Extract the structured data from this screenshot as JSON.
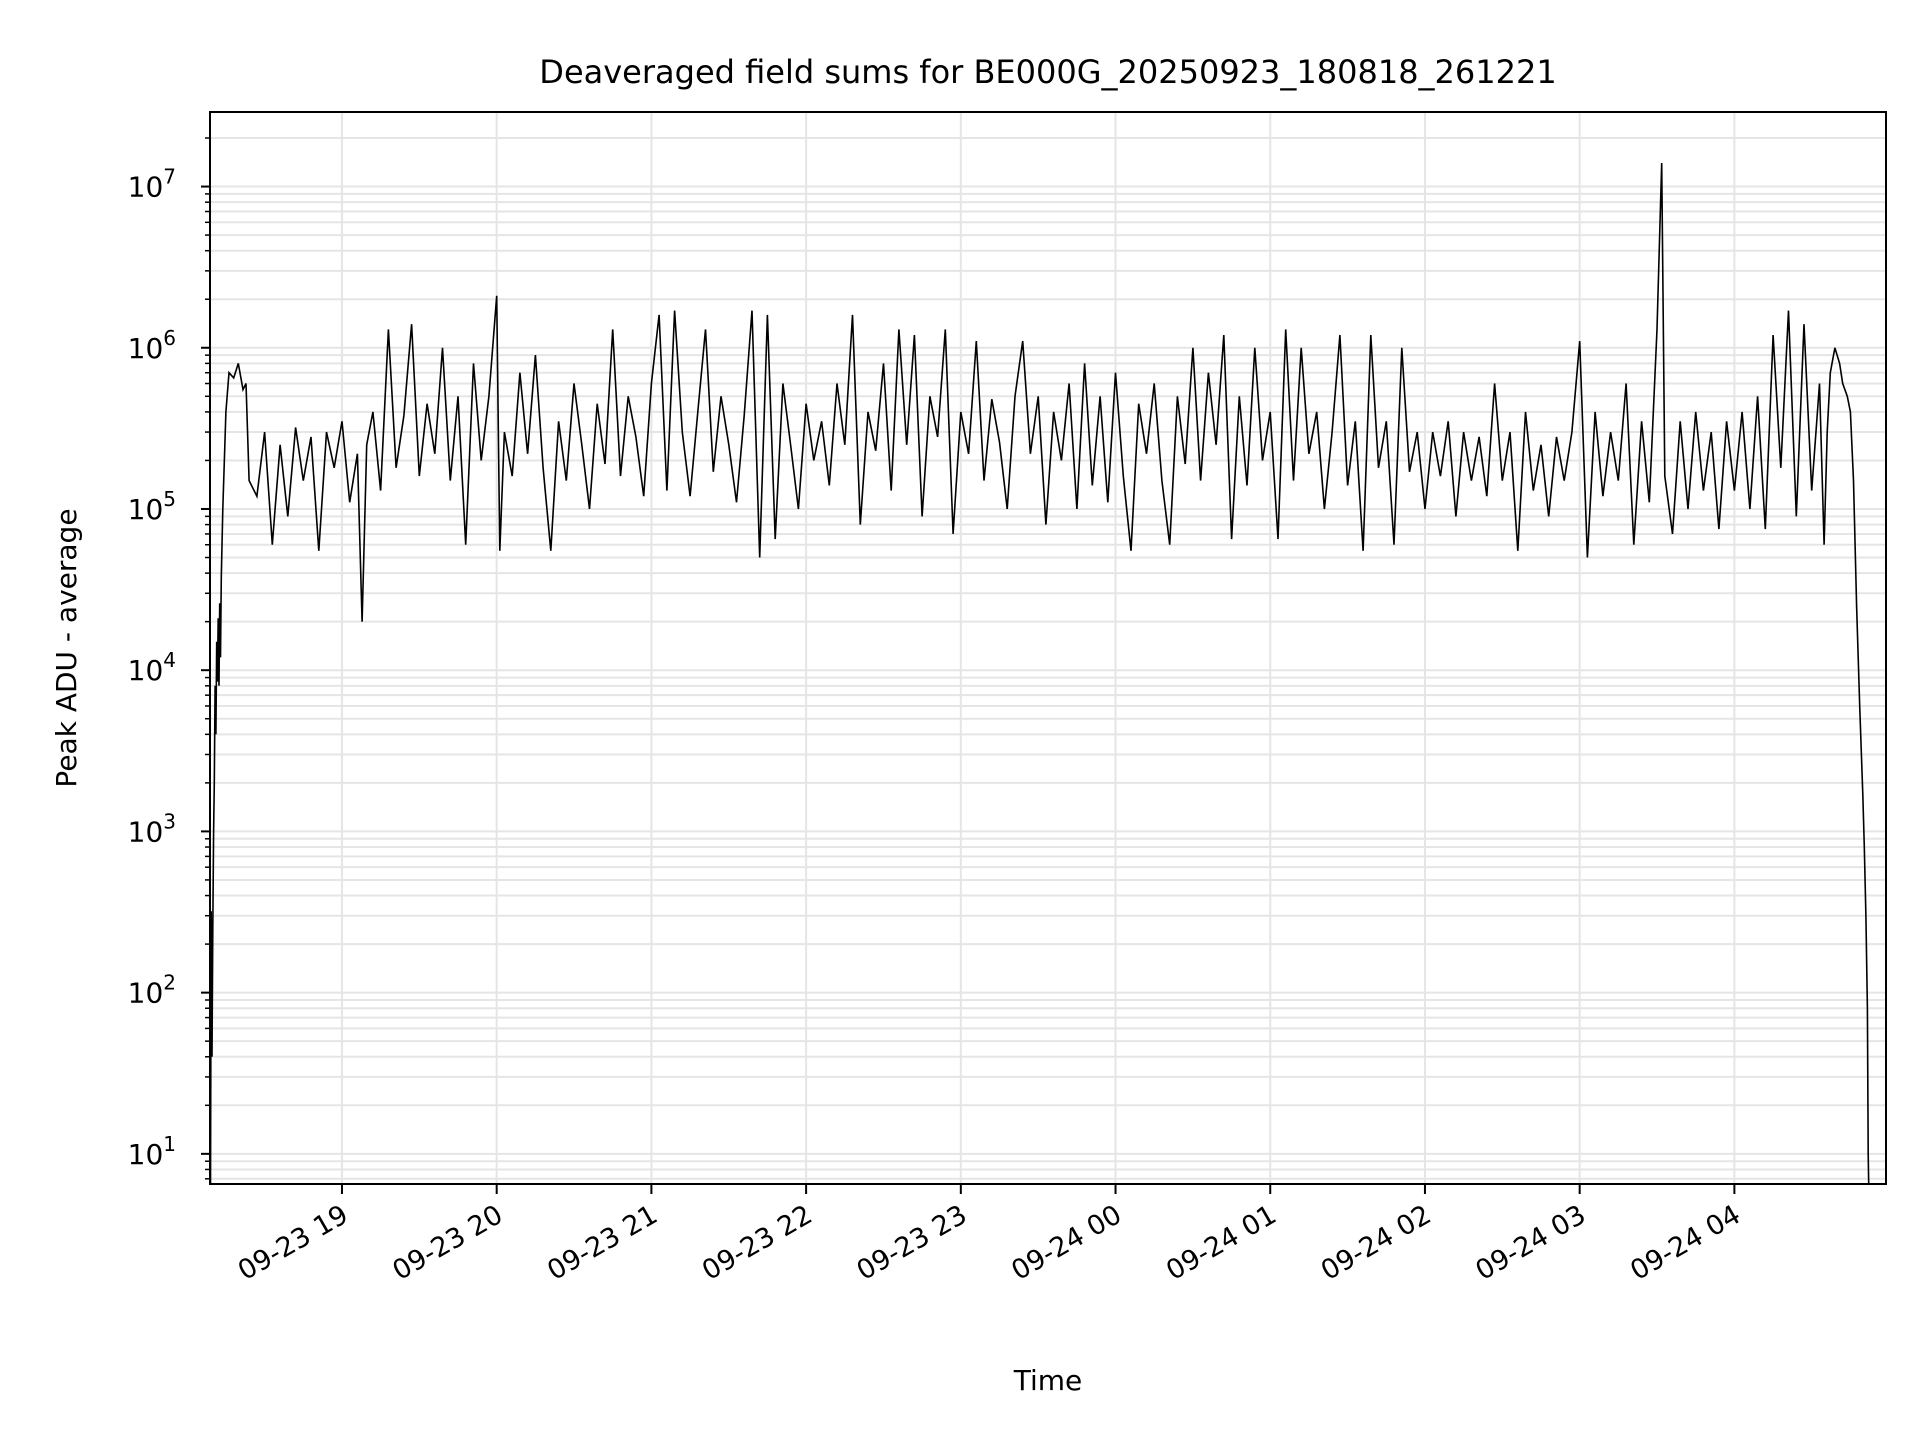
{
  "chart_data": {
    "type": "line",
    "title": "Deaveraged field sums for BE000G_20250923_180818_261221",
    "xlabel": "Time",
    "ylabel": "Peak ADU - average",
    "yscale": "log",
    "x_units": "hours since 09-23 00:00",
    "xlim": [
      18.147,
      28.98
    ],
    "ylim": [
      6.5,
      29000000
    ],
    "grid": true,
    "line_color": "#000000",
    "grid_color": "#e5e5e5",
    "x_ticks": [
      {
        "value": 19,
        "label": "09-23 19"
      },
      {
        "value": 20,
        "label": "09-23 20"
      },
      {
        "value": 21,
        "label": "09-23 21"
      },
      {
        "value": 22,
        "label": "09-23 22"
      },
      {
        "value": 23,
        "label": "09-23 23"
      },
      {
        "value": 24,
        "label": "09-24 00"
      },
      {
        "value": 25,
        "label": "09-24 01"
      },
      {
        "value": 26,
        "label": "09-24 02"
      },
      {
        "value": 27,
        "label": "09-24 03"
      },
      {
        "value": 28,
        "label": "09-24 04"
      }
    ],
    "y_ticks": [
      {
        "value": 10,
        "base": "10",
        "exp": "1"
      },
      {
        "value": 100,
        "base": "10",
        "exp": "2"
      },
      {
        "value": 1000,
        "base": "10",
        "exp": "3"
      },
      {
        "value": 10000,
        "base": "10",
        "exp": "4"
      },
      {
        "value": 100000,
        "base": "10",
        "exp": "5"
      },
      {
        "value": 1000000,
        "base": "10",
        "exp": "6"
      },
      {
        "value": 10000000,
        "base": "10",
        "exp": "7"
      }
    ],
    "series": [
      {
        "name": "Peak ADU - average",
        "points": [
          [
            18.14,
            5
          ],
          [
            18.145,
            130
          ],
          [
            18.15,
            6
          ],
          [
            18.155,
            320
          ],
          [
            18.16,
            40
          ],
          [
            18.165,
            250
          ],
          [
            18.17,
            1000
          ],
          [
            18.175,
            2000
          ],
          [
            18.18,
            8000
          ],
          [
            18.185,
            4000
          ],
          [
            18.19,
            15000
          ],
          [
            18.195,
            8500
          ],
          [
            18.2,
            21000
          ],
          [
            18.205,
            8000
          ],
          [
            18.21,
            26000
          ],
          [
            18.215,
            12000
          ],
          [
            18.22,
            38000
          ],
          [
            18.23,
            100000
          ],
          [
            18.25,
            400000
          ],
          [
            18.27,
            700000
          ],
          [
            18.3,
            650000
          ],
          [
            18.33,
            800000
          ],
          [
            18.36,
            550000
          ],
          [
            18.38,
            600000
          ],
          [
            18.4,
            150000
          ],
          [
            18.45,
            120000
          ],
          [
            18.5,
            300000
          ],
          [
            18.55,
            60000
          ],
          [
            18.6,
            250000
          ],
          [
            18.65,
            90000
          ],
          [
            18.7,
            320000
          ],
          [
            18.75,
            150000
          ],
          [
            18.8,
            280000
          ],
          [
            18.85,
            55000
          ],
          [
            18.9,
            300000
          ],
          [
            18.95,
            180000
          ],
          [
            19.0,
            350000
          ],
          [
            19.05,
            110000
          ],
          [
            19.1,
            220000
          ],
          [
            19.13,
            20000
          ],
          [
            19.16,
            250000
          ],
          [
            19.2,
            400000
          ],
          [
            19.25,
            130000
          ],
          [
            19.3,
            1300000
          ],
          [
            19.35,
            180000
          ],
          [
            19.4,
            380000
          ],
          [
            19.45,
            1400000
          ],
          [
            19.5,
            160000
          ],
          [
            19.55,
            450000
          ],
          [
            19.6,
            220000
          ],
          [
            19.65,
            1000000
          ],
          [
            19.7,
            150000
          ],
          [
            19.75,
            500000
          ],
          [
            19.8,
            60000
          ],
          [
            19.85,
            800000
          ],
          [
            19.9,
            200000
          ],
          [
            19.95,
            500000
          ],
          [
            20.0,
            2100000
          ],
          [
            20.02,
            55000
          ],
          [
            20.05,
            300000
          ],
          [
            20.1,
            160000
          ],
          [
            20.15,
            700000
          ],
          [
            20.2,
            220000
          ],
          [
            20.25,
            900000
          ],
          [
            20.3,
            180000
          ],
          [
            20.35,
            55000
          ],
          [
            20.4,
            350000
          ],
          [
            20.45,
            150000
          ],
          [
            20.5,
            600000
          ],
          [
            20.55,
            250000
          ],
          [
            20.6,
            100000
          ],
          [
            20.65,
            450000
          ],
          [
            20.7,
            190000
          ],
          [
            20.75,
            1300000
          ],
          [
            20.8,
            160000
          ],
          [
            20.85,
            500000
          ],
          [
            20.9,
            280000
          ],
          [
            20.95,
            120000
          ],
          [
            21.0,
            600000
          ],
          [
            21.05,
            1600000
          ],
          [
            21.1,
            130000
          ],
          [
            21.15,
            1700000
          ],
          [
            21.2,
            300000
          ],
          [
            21.25,
            120000
          ],
          [
            21.3,
            400000
          ],
          [
            21.35,
            1300000
          ],
          [
            21.4,
            170000
          ],
          [
            21.45,
            500000
          ],
          [
            21.5,
            250000
          ],
          [
            21.55,
            110000
          ],
          [
            21.6,
            380000
          ],
          [
            21.65,
            1700000
          ],
          [
            21.7,
            50000
          ],
          [
            21.75,
            1600000
          ],
          [
            21.8,
            65000
          ],
          [
            21.85,
            600000
          ],
          [
            21.9,
            250000
          ],
          [
            21.95,
            100000
          ],
          [
            22.0,
            450000
          ],
          [
            22.05,
            200000
          ],
          [
            22.1,
            350000
          ],
          [
            22.15,
            140000
          ],
          [
            22.2,
            600000
          ],
          [
            22.25,
            250000
          ],
          [
            22.3,
            1600000
          ],
          [
            22.35,
            80000
          ],
          [
            22.4,
            400000
          ],
          [
            22.45,
            230000
          ],
          [
            22.5,
            800000
          ],
          [
            22.55,
            130000
          ],
          [
            22.6,
            1300000
          ],
          [
            22.65,
            250000
          ],
          [
            22.7,
            1200000
          ],
          [
            22.75,
            90000
          ],
          [
            22.8,
            500000
          ],
          [
            22.85,
            280000
          ],
          [
            22.9,
            1300000
          ],
          [
            22.95,
            70000
          ],
          [
            23.0,
            400000
          ],
          [
            23.05,
            220000
          ],
          [
            23.1,
            1100000
          ],
          [
            23.15,
            150000
          ],
          [
            23.2,
            480000
          ],
          [
            23.25,
            260000
          ],
          [
            23.3,
            100000
          ],
          [
            23.35,
            500000
          ],
          [
            23.4,
            1100000
          ],
          [
            23.45,
            220000
          ],
          [
            23.5,
            500000
          ],
          [
            23.55,
            80000
          ],
          [
            23.6,
            400000
          ],
          [
            23.65,
            200000
          ],
          [
            23.7,
            600000
          ],
          [
            23.75,
            100000
          ],
          [
            23.8,
            800000
          ],
          [
            23.85,
            140000
          ],
          [
            23.9,
            500000
          ],
          [
            23.95,
            110000
          ],
          [
            24.0,
            700000
          ],
          [
            24.05,
            160000
          ],
          [
            24.1,
            55000
          ],
          [
            24.15,
            450000
          ],
          [
            24.2,
            220000
          ],
          [
            24.25,
            600000
          ],
          [
            24.3,
            150000
          ],
          [
            24.35,
            60000
          ],
          [
            24.4,
            500000
          ],
          [
            24.45,
            190000
          ],
          [
            24.5,
            1000000
          ],
          [
            24.55,
            150000
          ],
          [
            24.6,
            700000
          ],
          [
            24.65,
            250000
          ],
          [
            24.7,
            1200000
          ],
          [
            24.75,
            65000
          ],
          [
            24.8,
            500000
          ],
          [
            24.85,
            140000
          ],
          [
            24.9,
            1000000
          ],
          [
            24.95,
            200000
          ],
          [
            25.0,
            400000
          ],
          [
            25.05,
            65000
          ],
          [
            25.1,
            1300000
          ],
          [
            25.15,
            150000
          ],
          [
            25.2,
            1000000
          ],
          [
            25.25,
            220000
          ],
          [
            25.3,
            400000
          ],
          [
            25.35,
            100000
          ],
          [
            25.4,
            300000
          ],
          [
            25.45,
            1200000
          ],
          [
            25.5,
            140000
          ],
          [
            25.55,
            350000
          ],
          [
            25.6,
            55000
          ],
          [
            25.65,
            1200000
          ],
          [
            25.7,
            180000
          ],
          [
            25.75,
            350000
          ],
          [
            25.8,
            60000
          ],
          [
            25.85,
            1000000
          ],
          [
            25.9,
            170000
          ],
          [
            25.95,
            300000
          ],
          [
            26.0,
            100000
          ],
          [
            26.05,
            300000
          ],
          [
            26.1,
            160000
          ],
          [
            26.15,
            350000
          ],
          [
            26.2,
            90000
          ],
          [
            26.25,
            300000
          ],
          [
            26.3,
            150000
          ],
          [
            26.35,
            280000
          ],
          [
            26.4,
            120000
          ],
          [
            26.45,
            600000
          ],
          [
            26.5,
            150000
          ],
          [
            26.55,
            300000
          ],
          [
            26.6,
            55000
          ],
          [
            26.65,
            400000
          ],
          [
            26.7,
            130000
          ],
          [
            26.75,
            250000
          ],
          [
            26.8,
            90000
          ],
          [
            26.85,
            280000
          ],
          [
            26.9,
            150000
          ],
          [
            26.95,
            300000
          ],
          [
            27.0,
            1100000
          ],
          [
            27.05,
            50000
          ],
          [
            27.1,
            400000
          ],
          [
            27.15,
            120000
          ],
          [
            27.2,
            300000
          ],
          [
            27.25,
            150000
          ],
          [
            27.3,
            600000
          ],
          [
            27.35,
            60000
          ],
          [
            27.4,
            350000
          ],
          [
            27.45,
            110000
          ],
          [
            27.5,
            1300000
          ],
          [
            27.53,
            14000000
          ],
          [
            27.55,
            160000
          ],
          [
            27.6,
            70000
          ],
          [
            27.65,
            350000
          ],
          [
            27.7,
            100000
          ],
          [
            27.75,
            400000
          ],
          [
            27.8,
            130000
          ],
          [
            27.85,
            300000
          ],
          [
            27.9,
            75000
          ],
          [
            27.95,
            350000
          ],
          [
            28.0,
            130000
          ],
          [
            28.05,
            400000
          ],
          [
            28.1,
            100000
          ],
          [
            28.15,
            500000
          ],
          [
            28.2,
            75000
          ],
          [
            28.25,
            1200000
          ],
          [
            28.3,
            180000
          ],
          [
            28.35,
            1700000
          ],
          [
            28.4,
            90000
          ],
          [
            28.45,
            1400000
          ],
          [
            28.5,
            130000
          ],
          [
            28.55,
            600000
          ],
          [
            28.58,
            60000
          ],
          [
            28.6,
            300000
          ],
          [
            28.62,
            700000
          ],
          [
            28.65,
            1000000
          ],
          [
            28.68,
            800000
          ],
          [
            28.7,
            600000
          ],
          [
            28.73,
            500000
          ],
          [
            28.75,
            400000
          ],
          [
            28.77,
            150000
          ],
          [
            28.79,
            25000
          ],
          [
            28.81,
            6000
          ],
          [
            28.83,
            1700
          ],
          [
            28.84,
            800
          ],
          [
            28.85,
            300
          ],
          [
            28.86,
            80
          ],
          [
            28.865,
            10
          ],
          [
            28.87,
            5
          ]
        ]
      }
    ]
  }
}
